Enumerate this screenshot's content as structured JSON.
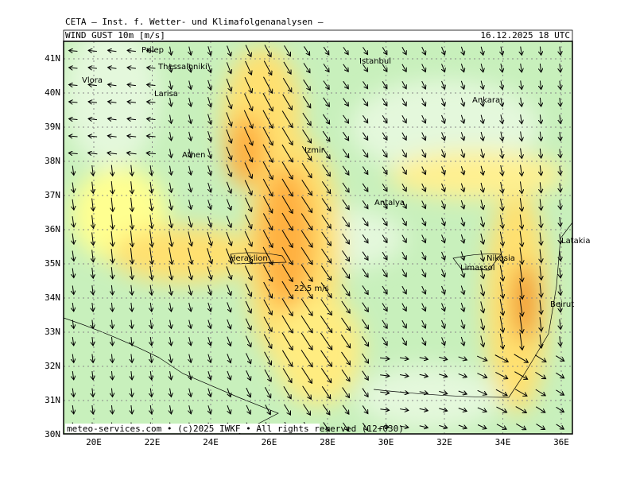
{
  "header": {
    "institute": "CETA – Inst. f. Wetter- und Klimafolgenanalysen –",
    "product": "WIND GUST 10m [m/s]",
    "valid": "16.12.2025 18 UTC"
  },
  "map": {
    "lat_labels": [
      "41N",
      "40N",
      "39N",
      "38N",
      "37N",
      "36N",
      "35N",
      "34N",
      "33N",
      "32N",
      "31N",
      "30N"
    ],
    "lon_labels": [
      "20E",
      "22E",
      "24E",
      "26E",
      "28E",
      "30E",
      "32E",
      "34E",
      "36E"
    ],
    "places": [
      "Prilep",
      "Thessaloniki",
      "Vlora",
      "Larisa",
      "Istanbul",
      "Ankara",
      "Izmir",
      "Athen",
      "Antalya",
      "Heraklion",
      "Nikosia",
      "Limassol",
      "Latakia",
      "Beirut"
    ],
    "annotation": "22.5 m/s",
    "footer": "meteo-services.com • (c)2025 IWKF • All rights reserved (12+030)"
  }
}
